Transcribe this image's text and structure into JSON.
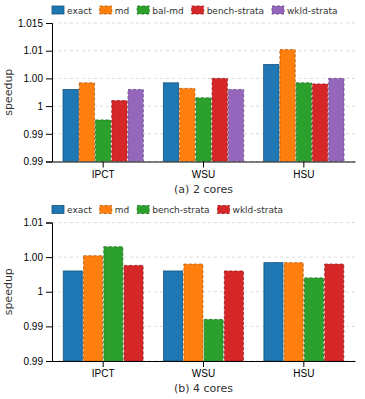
{
  "chart_data": [
    {
      "type": "bar",
      "categories": [
        "IPCT",
        "WSU",
        "HSU"
      ],
      "series": [
        {
          "name": "exact",
          "line_style": "solid",
          "values": [
            1.003,
            1.0042,
            1.0075
          ]
        },
        {
          "name": "md",
          "line_style": "dashed",
          "values": [
            1.0042,
            1.0032,
            1.0102
          ]
        },
        {
          "name": "bal-md",
          "line_style": "dashed",
          "values": [
            0.9975,
            1.0015,
            1.0042
          ]
        },
        {
          "name": "bench-strata",
          "line_style": "dashed",
          "values": [
            1.001,
            1.005,
            1.004
          ]
        },
        {
          "name": "wkld-strata",
          "line_style": "dashed",
          "values": [
            1.003,
            1.003,
            1.005
          ]
        }
      ],
      "ylim": [
        0.99,
        1.015
      ],
      "yticks": [
        0.99,
        {
          "value": 0.995,
          "label": "0.99"
        },
        1,
        {
          "value": 1.005,
          "label": "1.00"
        },
        1.01,
        1.015
      ],
      "ylabel": "speedup",
      "xlabel": "(a) 2 cores",
      "grid": true,
      "legend": "upper left"
    },
    {
      "type": "bar",
      "categories": [
        "IPCT",
        "WSU",
        "HSU"
      ],
      "series": [
        {
          "name": "exact",
          "line_style": "solid",
          "values": [
            1.003,
            1.003,
            1.0042
          ]
        },
        {
          "name": "md",
          "line_style": "dashed",
          "values": [
            1.0052,
            1.004,
            1.0042
          ]
        },
        {
          "name": "bench-strata",
          "line_style": "dashed",
          "values": [
            1.0065,
            0.996,
            1.002
          ]
        },
        {
          "name": "wkld-strata",
          "line_style": "dashed",
          "values": [
            1.0038,
            1.003,
            1.004
          ]
        }
      ],
      "ylim": [
        0.99,
        1.01
      ],
      "yticks": [
        0.99,
        {
          "value": 0.995,
          "label": "0.99"
        },
        1,
        {
          "value": 1.005,
          "label": "1.00"
        },
        1.01
      ],
      "ylabel": "speedup",
      "xlabel": "(b) 4 cores",
      "grid": true,
      "legend": "upper left"
    }
  ]
}
